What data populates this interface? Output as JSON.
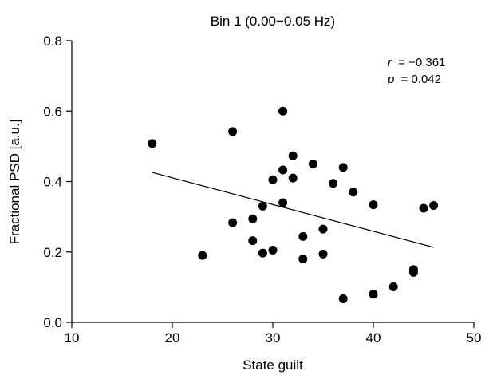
{
  "chart_data": {
    "type": "scatter",
    "title": "Bin 1 (0.00−0.05 Hz)",
    "xlabel": "State guilt",
    "ylabel": "Fractional PSD [a.u.]",
    "xlim": [
      10,
      50
    ],
    "ylim": [
      0.0,
      0.8
    ],
    "xticks": [
      10,
      20,
      30,
      40,
      50
    ],
    "xtick_labels": [
      "10",
      "20",
      "30",
      "40",
      "50"
    ],
    "yticks": [
      0.0,
      0.2,
      0.4,
      0.6,
      0.8
    ],
    "ytick_labels": [
      "0.0",
      "0.2",
      "0.4",
      "0.6",
      "0.8"
    ],
    "grid": false,
    "annotation": {
      "r_label": "r",
      "r_value": "= −0.361",
      "p_label": "p",
      "p_value": "= 0.042"
    },
    "series": [
      {
        "points": [
          {
            "x": 18,
            "y": 0.508
          },
          {
            "x": 23,
            "y": 0.19
          },
          {
            "x": 26,
            "y": 0.542
          },
          {
            "x": 26,
            "y": 0.283
          },
          {
            "x": 28,
            "y": 0.294
          },
          {
            "x": 28,
            "y": 0.232
          },
          {
            "x": 29,
            "y": 0.33
          },
          {
            "x": 29,
            "y": 0.197
          },
          {
            "x": 30,
            "y": 0.405
          },
          {
            "x": 30,
            "y": 0.205
          },
          {
            "x": 31,
            "y": 0.6
          },
          {
            "x": 31,
            "y": 0.433
          },
          {
            "x": 31,
            "y": 0.34
          },
          {
            "x": 32,
            "y": 0.473
          },
          {
            "x": 32,
            "y": 0.41
          },
          {
            "x": 33,
            "y": 0.244
          },
          {
            "x": 33,
            "y": 0.18
          },
          {
            "x": 34,
            "y": 0.45
          },
          {
            "x": 35,
            "y": 0.265
          },
          {
            "x": 35,
            "y": 0.194
          },
          {
            "x": 36,
            "y": 0.395
          },
          {
            "x": 37,
            "y": 0.44
          },
          {
            "x": 37,
            "y": 0.067
          },
          {
            "x": 38,
            "y": 0.37
          },
          {
            "x": 40,
            "y": 0.334
          },
          {
            "x": 40,
            "y": 0.08
          },
          {
            "x": 42,
            "y": 0.101
          },
          {
            "x": 44,
            "y": 0.15
          },
          {
            "x": 44,
            "y": 0.142
          },
          {
            "x": 45,
            "y": 0.324
          },
          {
            "x": 46,
            "y": 0.332
          }
        ],
        "color": "#000000"
      }
    ],
    "fit_line": {
      "x": [
        18,
        46
      ],
      "y": [
        0.426,
        0.213
      ],
      "color": "#000000"
    }
  }
}
